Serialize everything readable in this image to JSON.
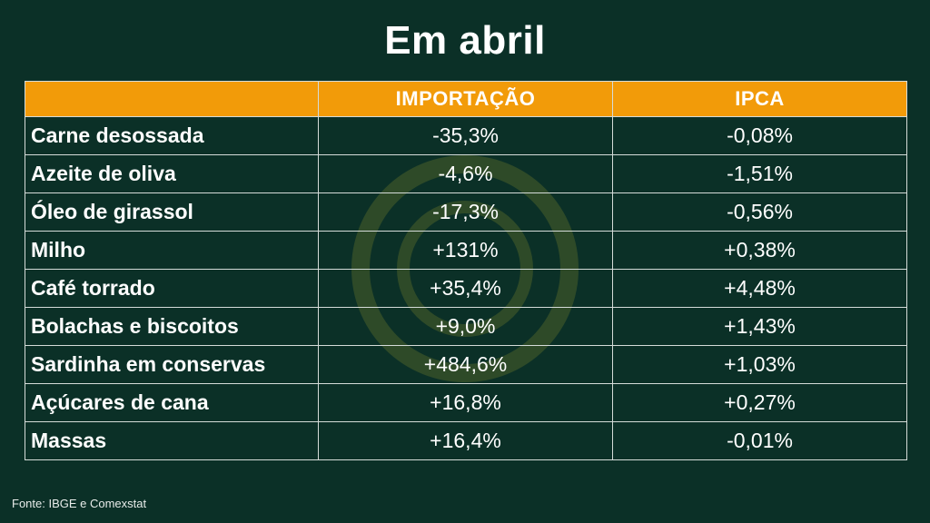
{
  "title": "Em abril",
  "table": {
    "headers": [
      "",
      "IMPORTAÇÃO",
      "IPCA"
    ],
    "rows": [
      {
        "product": "Carne desossada",
        "importacao": "-35,3%",
        "ipca": "-0,08%"
      },
      {
        "product": "Azeite de oliva",
        "importacao": "-4,6%",
        "ipca": "-1,51%"
      },
      {
        "product": "Óleo de girassol",
        "importacao": "-17,3%",
        "ipca": "-0,56%"
      },
      {
        "product": "Milho",
        "importacao": "+131%",
        "ipca": "+0,38%"
      },
      {
        "product": "Café torrado",
        "importacao": "+35,4%",
        "ipca": "+4,48%"
      },
      {
        "product": "Bolachas e biscoitos",
        "importacao": "+9,0%",
        "ipca": "+1,43%"
      },
      {
        "product": "Sardinha em conservas",
        "importacao": "+484,6%",
        "ipca": "+1,03%"
      },
      {
        "product": "Açúcares de cana",
        "importacao": "+16,8%",
        "ipca": "+0,27%"
      },
      {
        "product": "Massas",
        "importacao": "+16,4%",
        "ipca": "-0,01%"
      }
    ]
  },
  "source": "Fonte: IBGE e Comexstat",
  "colors": {
    "background": "#0b3027",
    "header": "#f29b09",
    "border": "#d5dcd9",
    "text": "#ffffff"
  },
  "icons": {
    "watermark": "concentric-circles-logo"
  }
}
